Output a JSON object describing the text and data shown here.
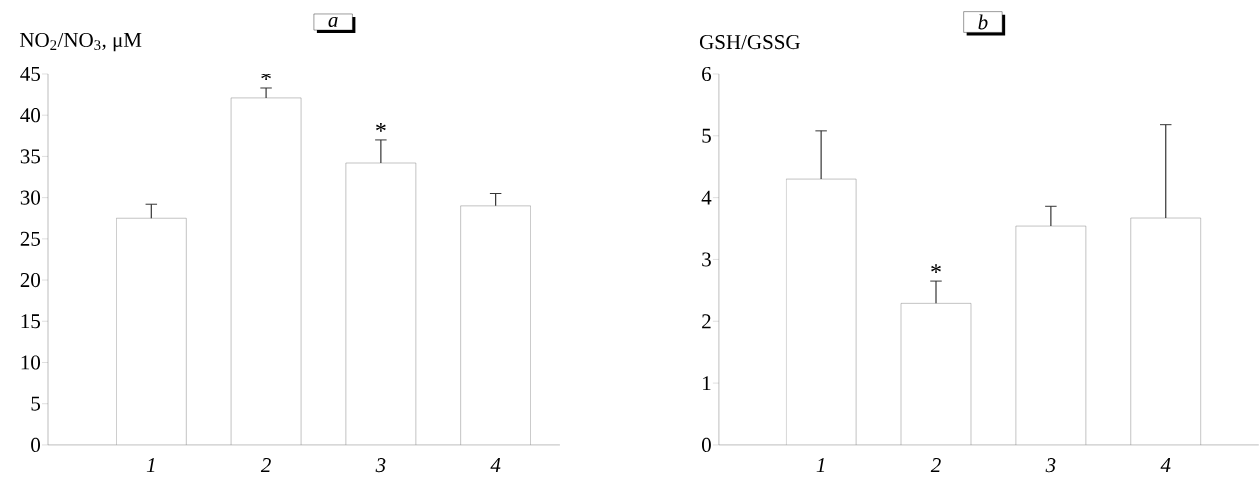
{
  "chart_data": [
    {
      "type": "bar",
      "title": "a",
      "ylabel": "NO$_{2}$/NO$_{3}$, μM",
      "categories": [
        "1",
        "2",
        "3",
        "4"
      ],
      "values": [
        27.5,
        42.1,
        34.2,
        29.0
      ],
      "errors": [
        [
          27.5,
          29.2
        ],
        [
          42.1,
          43.3
        ],
        [
          34.2,
          37.0
        ],
        [
          29.0,
          30.5
        ]
      ],
      "color": "#ffffff",
      "ylim": [
        0,
        45
      ],
      "yticks": [
        0,
        5,
        10,
        15,
        20,
        25,
        30,
        35,
        40,
        45
      ],
      "grid": false,
      "annotations": [
        {
          "text": "*",
          "x": "2",
          "y": 43.3
        },
        {
          "text": "*",
          "x": "3",
          "y": 37.0
        }
      ]
    },
    {
      "type": "bar",
      "title": "b",
      "ylabel": "GSH/GSSG",
      "categories": [
        "1",
        "2",
        "3",
        "4"
      ],
      "values": [
        4.3,
        2.29,
        3.54,
        3.67
      ],
      "errors": [
        [
          4.3,
          5.08
        ],
        [
          2.29,
          2.65
        ],
        [
          3.54,
          3.86
        ],
        [
          3.67,
          5.18
        ]
      ],
      "color": "#ffffff",
      "ylim": [
        0,
        6
      ],
      "yticks": [
        0,
        1,
        2,
        3,
        4,
        5,
        6
      ],
      "grid": false,
      "annotations": [
        {
          "text": "*",
          "x": "2",
          "y": 2.65
        }
      ]
    }
  ]
}
